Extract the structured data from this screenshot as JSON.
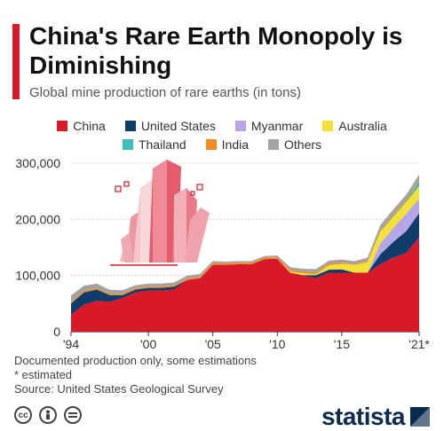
{
  "header": {
    "title": "China's Rare Earth Monopoly is Diminishing",
    "subtitle": "Global mine production of rare earths (in tons)"
  },
  "colors": {
    "accent": "#d7192a",
    "China": "#d7192a",
    "United States": "#0f3c6b",
    "Myanmar": "#b6a6e8",
    "Australia": "#f3e13a",
    "Thailand": "#3fbfb7",
    "India": "#f08c27",
    "Others": "#a3a3a3"
  },
  "legend": {
    "row1": [
      "China",
      "United States",
      "Myanmar",
      "Australia"
    ],
    "row2": [
      "Thailand",
      "India",
      "Others"
    ]
  },
  "footnotes": {
    "note1": "Documented production only, some estimations",
    "note2": "* estimated",
    "source": "Source: United States Geological Survey"
  },
  "footer": {
    "license_icons": [
      "cc-icon",
      "person-icon",
      "equals-icon"
    ],
    "brand": "statista"
  },
  "chart_data": {
    "type": "area",
    "stacked": true,
    "x": [
      1994,
      1995,
      1996,
      1997,
      1998,
      1999,
      2000,
      2001,
      2002,
      2003,
      2004,
      2005,
      2006,
      2007,
      2008,
      2009,
      2010,
      2011,
      2012,
      2013,
      2014,
      2015,
      2016,
      2017,
      2018,
      2019,
      2020,
      2021
    ],
    "xtick_labels": [
      "'94",
      "'00",
      "'05",
      "'10",
      "'15",
      "'21*"
    ],
    "xtick_values": [
      1994,
      2000,
      2005,
      2010,
      2015,
      2021
    ],
    "ytick_labels": [
      "0",
      "100,000",
      "200,000",
      "300,000"
    ],
    "ytick_values": [
      0,
      100000,
      200000,
      300000
    ],
    "ylim": [
      0,
      300000
    ],
    "grid": true,
    "legend_position": "top",
    "series": [
      {
        "name": "China",
        "values": [
          30000,
          48000,
          55000,
          53000,
          60000,
          70000,
          73000,
          73000,
          75000,
          92000,
          95000,
          119000,
          119000,
          120000,
          120000,
          129000,
          130000,
          105000,
          100000,
          95000,
          105000,
          105000,
          105000,
          105000,
          120000,
          132000,
          140000,
          168000
        ]
      },
      {
        "name": "United States",
        "values": [
          20000,
          22000,
          20000,
          12000,
          5000,
          5000,
          5000,
          5000,
          5000,
          0,
          0,
          0,
          0,
          0,
          0,
          0,
          0,
          0,
          800,
          5500,
          5400,
          5900,
          0,
          0,
          18000,
          28000,
          39000,
          43000
        ]
      },
      {
        "name": "Myanmar",
        "values": [
          0,
          0,
          0,
          0,
          0,
          0,
          0,
          0,
          0,
          0,
          0,
          0,
          0,
          0,
          0,
          0,
          0,
          0,
          0,
          0,
          0,
          0,
          0,
          0,
          19000,
          25000,
          31000,
          26000
        ]
      },
      {
        "name": "Australia",
        "values": [
          0,
          0,
          0,
          0,
          0,
          0,
          0,
          0,
          0,
          0,
          0,
          0,
          0,
          0,
          0,
          0,
          0,
          2200,
          3200,
          2000,
          8000,
          10000,
          14000,
          19000,
          21000,
          20000,
          21000,
          22000
        ]
      },
      {
        "name": "Thailand",
        "values": [
          0,
          0,
          0,
          0,
          0,
          0,
          0,
          0,
          0,
          0,
          0,
          0,
          0,
          0,
          0,
          0,
          0,
          0,
          0,
          0,
          0,
          0,
          0,
          0,
          1000,
          1800,
          2000,
          8000
        ]
      },
      {
        "name": "India",
        "values": [
          2600,
          2700,
          2700,
          2700,
          2700,
          2700,
          2700,
          2700,
          2700,
          2700,
          2700,
          2700,
          2700,
          2700,
          2700,
          2700,
          2700,
          2800,
          2900,
          2900,
          3000,
          1700,
          1500,
          1800,
          2900,
          2900,
          2900,
          2900
        ]
      },
      {
        "name": "Others",
        "values": [
          12000,
          9000,
          8000,
          7000,
          6000,
          5000,
          5000,
          5000,
          5000,
          5000,
          5000,
          4000,
          3000,
          3000,
          3000,
          3000,
          3000,
          5000,
          5000,
          6000,
          5000,
          6000,
          5000,
          6000,
          8000,
          8000,
          8000,
          10000
        ]
      }
    ]
  }
}
